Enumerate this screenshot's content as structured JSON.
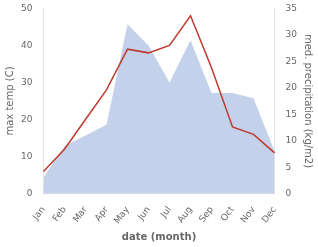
{
  "chart_data": {
    "type": "line",
    "categories": [
      "Jan",
      "Feb",
      "Mar",
      "Apr",
      "May",
      "Jun",
      "Jul",
      "Aug",
      "Sep",
      "Oct",
      "Nov",
      "Dec"
    ],
    "xlabel": "date (month)",
    "ylabel": "max temp (C)",
    "y2label": "med. precipitation (kg/m2)",
    "series": [
      {
        "type": "area",
        "axis": "y2",
        "color": "#b8c9e8",
        "values": [
          3,
          9,
          11,
          13,
          32,
          28,
          21,
          29,
          19,
          19,
          18,
          8
        ]
      },
      {
        "type": "line",
        "color": "#c0392b",
        "values": [
          6,
          12,
          20,
          28,
          39,
          38,
          40,
          48,
          34,
          18,
          16,
          11
        ]
      }
    ],
    "ylim": [
      0,
      50
    ],
    "yticks": [
      0,
      10,
      20,
      30,
      40,
      50
    ],
    "y2lim": [
      0,
      35
    ],
    "y2ticks": [
      0,
      5,
      10,
      15,
      20,
      25,
      30,
      35
    ],
    "grid": false
  }
}
